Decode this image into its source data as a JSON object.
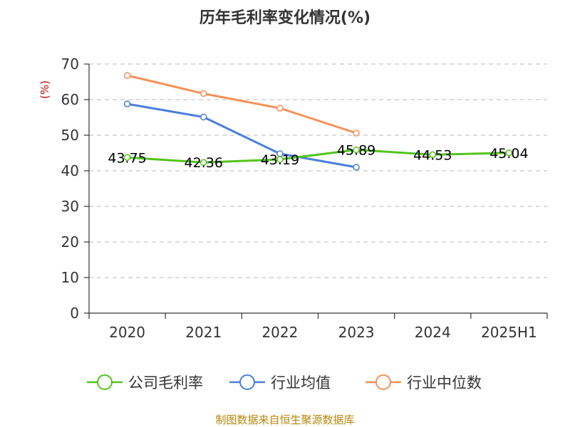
{
  "chart_data": {
    "type": "line",
    "title": "历年毛利率变化情况(%)",
    "ylabel": "(%)",
    "xlabel": "",
    "categories": [
      "2020",
      "2021",
      "2022",
      "2023",
      "2024",
      "2025H1"
    ],
    "ylim": [
      0,
      70
    ],
    "yticks": [
      0,
      10,
      20,
      30,
      40,
      50,
      60,
      70
    ],
    "grid": true,
    "legend_position": "bottom",
    "series": [
      {
        "name": "公司毛利率",
        "color": "#52c41a",
        "values": [
          43.75,
          42.36,
          43.19,
          45.89,
          44.53,
          45.04
        ],
        "data_labels": [
          "43.75",
          "42.36",
          "43.19",
          "45.89",
          "44.53",
          "45.04"
        ]
      },
      {
        "name": "行业均值",
        "color": "#4a7fdc",
        "values": [
          58.8,
          55.1,
          44.8,
          41.0,
          null,
          null
        ]
      },
      {
        "name": "行业中位数",
        "color": "#f5915a",
        "values": [
          66.8,
          61.7,
          57.6,
          50.6,
          null,
          null
        ]
      }
    ]
  },
  "source_text": "制图数据来自恒生聚源数据库"
}
